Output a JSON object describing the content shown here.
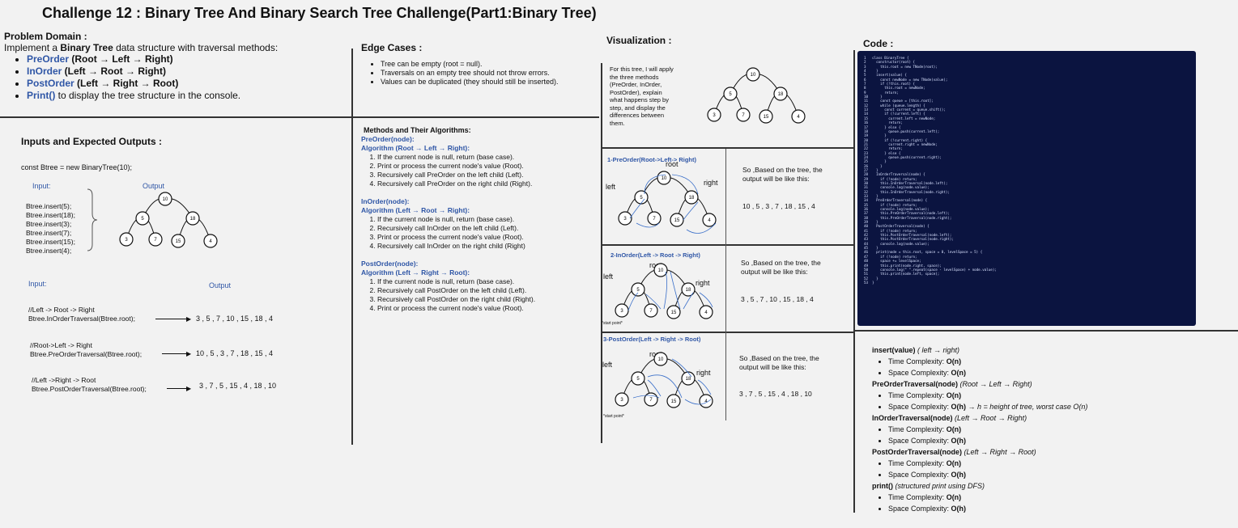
{
  "title": "Challenge 12 : Binary Tree And Binary Search Tree Challenge(Part1:Binary Tree)",
  "problem": {
    "heading": "Problem Domain :",
    "intro_pre": "Implement a ",
    "intro_bold": "Binary Tree",
    "intro_post": " data structure with traversal methods:",
    "items": [
      {
        "name": "PreOrder",
        "desc": " (Root → Left → Right)"
      },
      {
        "name": "InOrder",
        "desc": " (Left → Root → Right)"
      },
      {
        "name": "PostOrder",
        "desc": " (Left → Right → Root)"
      },
      {
        "name": "Print()",
        "desc": " to display the tree structure in the console."
      }
    ]
  },
  "edge": {
    "heading": "Edge Cases :",
    "items": [
      "Tree can be empty (root = null).",
      "Traversals on an empty tree should not throw errors.",
      "Values can be duplicated (they should still be inserted)."
    ]
  },
  "methods": {
    "heading": "Methods and Their Algorithms:",
    "pre": {
      "sig": "PreOrder(node):",
      "algo": "Algorithm (Root → Left → Right):",
      "steps": [
        "If the current node is null, return (base case).",
        "Print or process the current node's value (Root).",
        "Recursively call PreOrder on the left child (Left).",
        "Recursively call PreOrder on the right child (Right)."
      ]
    },
    "in": {
      "sig": "InOrder(node):",
      "algo": "Algorithm (Left → Root → Right):",
      "steps": [
        "If the current node is null, return (base case).",
        "Recursively call InOrder on the left child (Left).",
        "Print or process the current node's value (Root).",
        "Recursively call InOrder on the right child (Right)"
      ]
    },
    "post": {
      "sig": "PostOrder(node):",
      "algo": "Algorithm (Left → Right → Root):",
      "steps": [
        "If the current node is null, return (base case).",
        "Recursively call PostOrder on the left child (Left).",
        "Recursively call PostOrder on the right child (Right).",
        "Print or process the current node's value (Root)."
      ]
    }
  },
  "io": {
    "heading": "Inputs and Expected Outputs :",
    "ctor": "const Btree = new BinaryTree(10);",
    "input_label": "Input:",
    "output_label": "Output",
    "inserts": [
      "Btree.insert(5);",
      "Btree.insert(18);",
      "Btree.insert(3);",
      "Btree.insert(7);",
      "Btree.insert(15);",
      "Btree.insert(4);"
    ],
    "input2_label": "Input:",
    "output2_label": "Output",
    "rows": [
      {
        "comment": "//Left -> Root -> Right",
        "call": "Btree.InOrderTraversal(Btree.root);",
        "result": "3 , 5 , 7 , 10 , 15 , 18 , 4"
      },
      {
        "comment": "//Root->Left -> Right",
        "call": "Btree.PreOrderTraversal(Btree.root);",
        "result": "10 , 5 , 3 , 7 , 18 , 15 , 4"
      },
      {
        "comment": "//Left ->Right -> Root",
        "call": "Btree.PostOrderTraversal(Btree.root);",
        "result": "3 , 7 , 5 , 15 , 4 , 18 , 10"
      }
    ]
  },
  "tree_values": {
    "root": "10",
    "l": "5",
    "r": "18",
    "ll": "3",
    "lr": "7",
    "rl": "15",
    "rr": "4"
  },
  "viz": {
    "heading": "Visualization :",
    "desc": "For this tree, I will apply the three methods (PreOrder, InOrder, PostOrder), explain what happens step by step, and display the differences between them.",
    "panels": [
      {
        "title": "1-PreOrder(Root->Left-> Right)",
        "root": "root",
        "left": "left",
        "right": "right",
        "note": "",
        "text": "So ,Based on the tree, the output will be like this:",
        "result": "10 , 5 , 3 , 7 , 18 , 15 , 4"
      },
      {
        "title": "2-InOrder(Left -> Root -> Right)",
        "root": "root",
        "left": "left",
        "right": "right",
        "note": "*start point*",
        "text": "So ,Based on the tree, the output will be like this:",
        "result": "3 , 5 , 7 , 10 , 15 , 18 , 4"
      },
      {
        "title": "3-PostOrder(Left -> Right -> Root)",
        "root": "root",
        "left": "left",
        "right": "right",
        "note": "*start point*",
        "text": "So ,Based on the tree, the output will be like this:",
        "result": "3 , 7 , 5 , 15 , 4 , 18 , 10"
      }
    ]
  },
  "code": {
    "heading": "Code :",
    "lines": [
      "1   class BinaryTree {",
      "2     constructor(root) {",
      "3       this.root = new TNode(root);",
      "4     }",
      "5     insert(value) {",
      "6       const newNode = new TNode(value);",
      "7       if (!this.root) {",
      "8         this.root = newNode;",
      "9         return;",
      "10      }",
      "11      const queue = [this.root];",
      "12      while (queue.length) {",
      "13        const current = queue.shift();",
      "14        if (!current.left) {",
      "15          current.left = newNode;",
      "16          return;",
      "17        } else {",
      "18          queue.push(current.left);",
      "19        }",
      "20        if (!current.right) {",
      "21          current.right = newNode;",
      "22          return;",
      "23        } else {",
      "24          queue.push(current.right);",
      "25        }",
      "26      }",
      "27    }",
      "28    InOrderTraversal(node) {",
      "29      if (!node) return;",
      "30      this.InOrderTraversal(node.left);",
      "31      console.log(node.value);",
      "32      this.InOrderTraversal(node.right);",
      "33    }",
      "34    PreOrderTraversal(node) {",
      "35      if (!node) return;",
      "36      console.log(node.value);",
      "37      this.PreOrderTraversal(node.left);",
      "38      this.PreOrderTraversal(node.right);",
      "39    }",
      "40    PostOrderTraversal(node) {",
      "41      if (!node) return;",
      "42      this.PostOrderTraversal(node.left);",
      "43      this.PostOrderTraversal(node.right);",
      "44      console.log(node.value);",
      "45    }",
      "46    print(node = this.root, space = 0, levelSpace = 5) {",
      "47      if (!node) return;",
      "48      space += levelSpace;",
      "49      this.print(node.right, space);",
      "50      console.log(\" \".repeat(space - levelSpace) + node.value);",
      "51      this.print(node.left, space);",
      "52    }",
      "53  }"
    ]
  },
  "complexity": [
    {
      "method": "insert(value)",
      "note": " ( left → right)",
      "time": "O(n)",
      "space": "O(n)",
      "space_note": ""
    },
    {
      "method": "PreOrderTraversal(node)",
      "note": " (Root → Left → Right)",
      "time": "O(n)",
      "space": "O(h)",
      "space_note": " → h = height of tree, worst case O(n)"
    },
    {
      "method": "InOrderTraversal(node)",
      "note": " (Left → Root → Right)",
      "time": "O(n)",
      "space": "O(h)",
      "space_note": ""
    },
    {
      "method": "PostOrderTraversal(node)",
      "note": " (Left → Right → Root)",
      "time": "O(n)",
      "space": "O(h)",
      "space_note": ""
    },
    {
      "method": "print()",
      "note": " (structured print using DFS)",
      "time": "O(n)",
      "space": "O(h)",
      "space_note": ""
    }
  ],
  "labels": {
    "time": "Time Complexity: ",
    "space": "Space Complexity: "
  }
}
